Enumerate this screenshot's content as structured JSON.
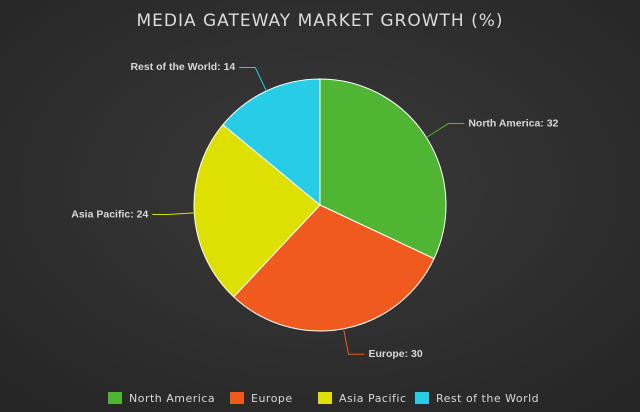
{
  "chart_data": {
    "type": "pie",
    "title": "MEDIA GATEWAY MARKET GROWTH (%)",
    "categories": [
      "North America",
      "Europe",
      "Asia Pacific",
      "Rest of the World"
    ],
    "values": [
      32,
      30,
      24,
      14
    ],
    "value_labels": [
      "North America: 32",
      "Europe: 30",
      "Asia Pacific: 24",
      "Rest of the World: 14"
    ],
    "colors": [
      "#4fb533",
      "#f05a1e",
      "#dde000",
      "#27cde6"
    ],
    "legend": "bottom"
  }
}
